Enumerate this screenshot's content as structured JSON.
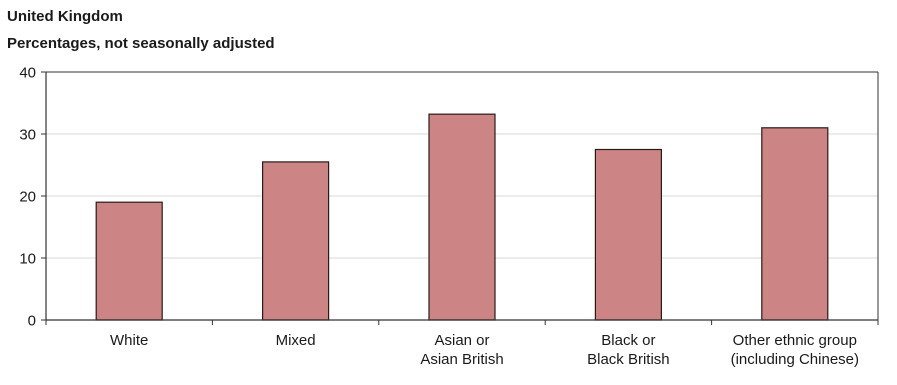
{
  "chart_data": {
    "type": "bar",
    "title": "United Kingdom",
    "subtitle": "Percentages, not seasonally adjusted",
    "categories": [
      [
        "White"
      ],
      [
        "Mixed"
      ],
      [
        "Asian or",
        "Asian British"
      ],
      [
        "Black or",
        "Black British"
      ],
      [
        "Other ethnic group",
        "(including Chinese)"
      ]
    ],
    "values": [
      19,
      25.5,
      33.2,
      27.5,
      31
    ],
    "ylim": [
      0,
      40
    ],
    "yticks": [
      0,
      10,
      20,
      30,
      40
    ],
    "grid": true,
    "colors": {
      "bar_fill": "#cd8484",
      "bar_stroke": "#2a1a1a",
      "grid": "#d9d9d9",
      "axis": "#333333"
    }
  }
}
